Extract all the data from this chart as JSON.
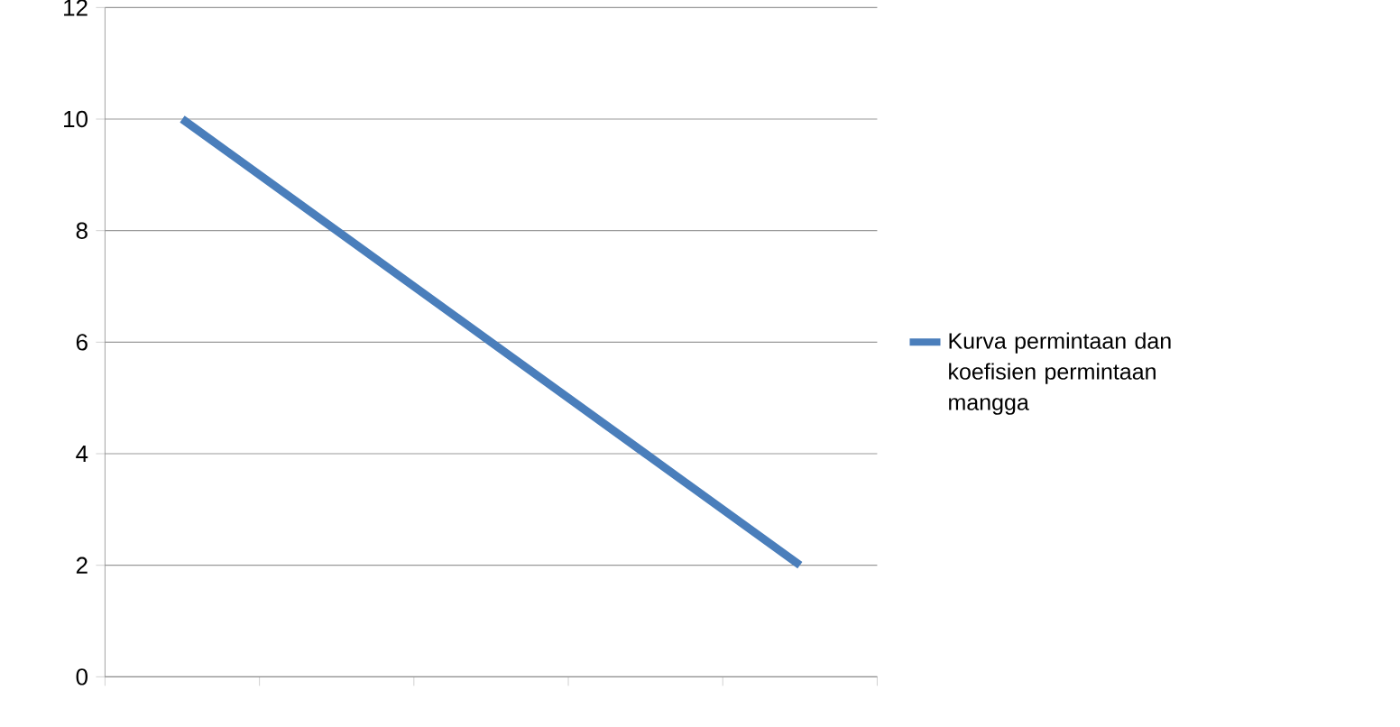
{
  "chart_data": {
    "type": "line",
    "categories": [
      null,
      null,
      null,
      null,
      null
    ],
    "series": [
      {
        "name": "Kurva permintaan dan koefisien permintaan mangga",
        "color": "#4a7ebb",
        "values": [
          10,
          8,
          6,
          4,
          2
        ]
      }
    ],
    "ylim": [
      0,
      12
    ],
    "yticks": [
      0,
      2,
      4,
      6,
      8,
      10,
      12
    ],
    "grid": "y",
    "legend": "right",
    "marker": "none",
    "line_style": "solid"
  }
}
